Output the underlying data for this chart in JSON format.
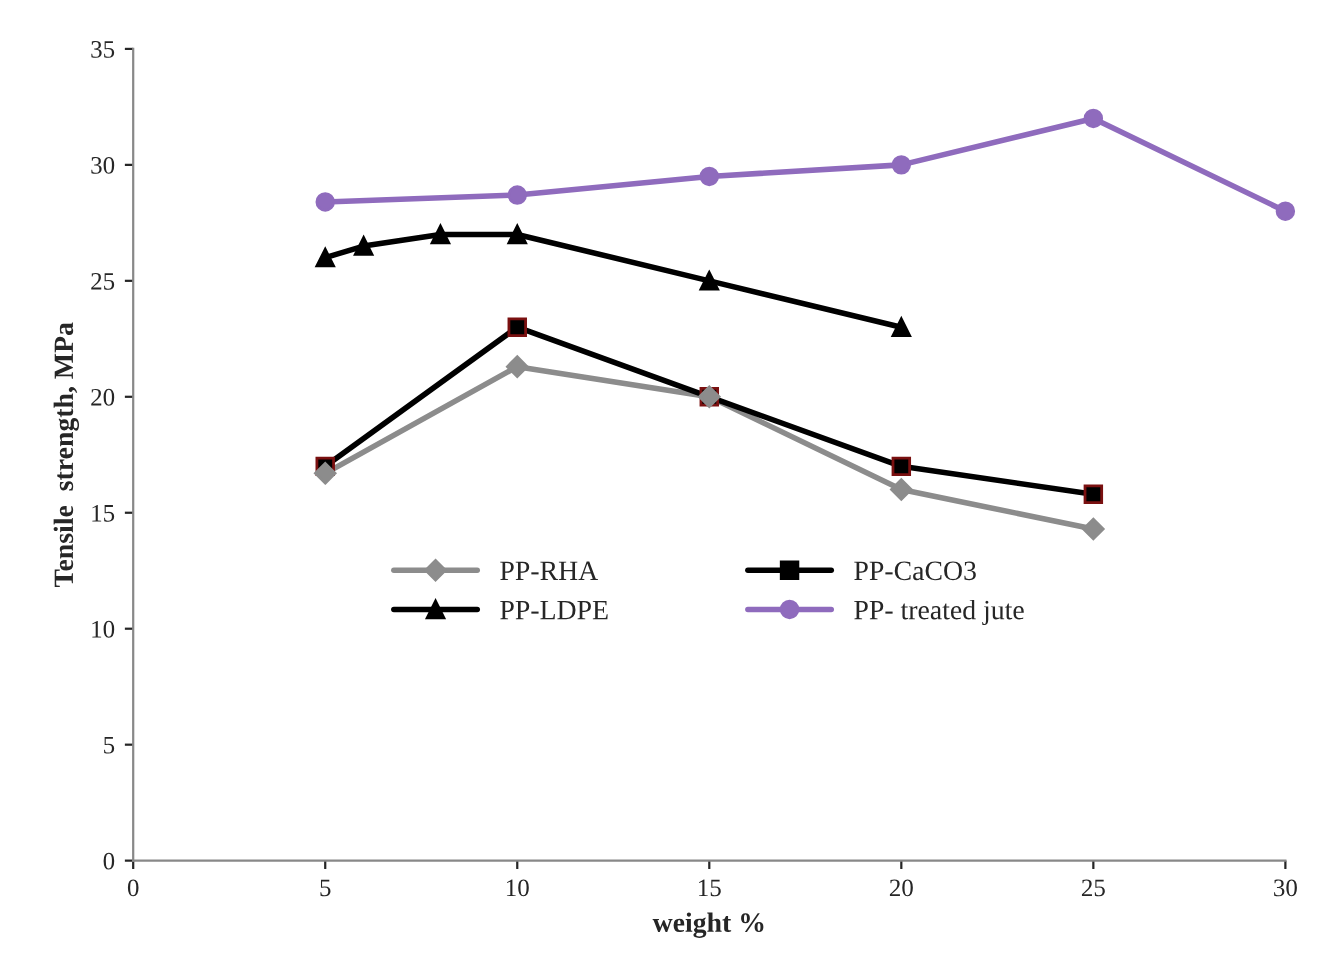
{
  "chart_data": {
    "type": "line",
    "xlabel": "weight %",
    "ylabel": "Tensile  strength, MPa",
    "xlim": [
      0,
      30
    ],
    "xticks": [
      0,
      5,
      10,
      15,
      20,
      25,
      30
    ],
    "ylim": [
      0,
      35
    ],
    "yticks": [
      0,
      5,
      10,
      15,
      20,
      25,
      30,
      35
    ],
    "grid": false,
    "legend": "center",
    "series": [
      {
        "name": "PP-RHA",
        "color": "#8c8c8c",
        "marker": "diamond",
        "x": [
          5,
          10,
          15,
          20,
          25
        ],
        "values": [
          16.7,
          21.3,
          20,
          16,
          14.3
        ]
      },
      {
        "name": "PP-CaCO3",
        "color": "#000000",
        "marker": "square",
        "x": [
          5,
          10,
          15,
          20,
          25
        ],
        "values": [
          17,
          23,
          20,
          17,
          15.8
        ]
      },
      {
        "name": "PP-LDPE",
        "color": "#000000",
        "marker": "triangle",
        "x": [
          5,
          6,
          8,
          10,
          15,
          20
        ],
        "values": [
          26,
          26.5,
          27,
          27,
          25,
          23
        ]
      },
      {
        "name": "PP- treated jute",
        "color": "#8f6bbd",
        "marker": "circle",
        "x": [
          5,
          10,
          15,
          20,
          25,
          30
        ],
        "values": [
          28.4,
          28.7,
          29.5,
          30,
          32,
          28
        ]
      }
    ]
  }
}
